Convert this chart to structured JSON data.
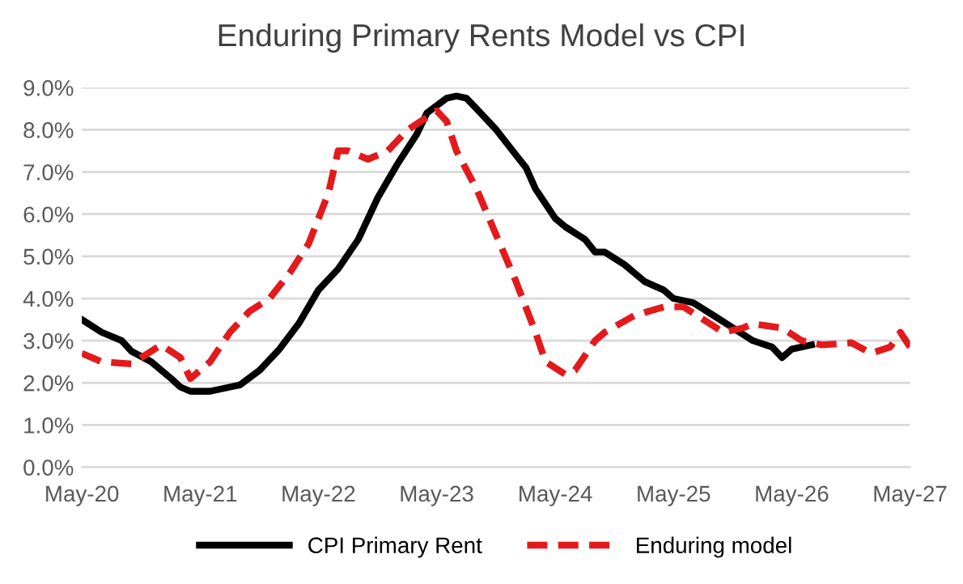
{
  "chart_data": {
    "type": "line",
    "title": "Enduring Primary Rents Model vs CPI",
    "xlim": [
      "2020-05",
      "2027-05"
    ],
    "xticks": [
      {
        "value": "2020-05",
        "label": "May-20"
      },
      {
        "value": "2021-05",
        "label": "May-21"
      },
      {
        "value": "2022-05",
        "label": "May-22"
      },
      {
        "value": "2023-05",
        "label": "May-23"
      },
      {
        "value": "2024-05",
        "label": "May-24"
      },
      {
        "value": "2025-05",
        "label": "May-25"
      },
      {
        "value": "2026-05",
        "label": "May-26"
      },
      {
        "value": "2027-05",
        "label": "May-27"
      }
    ],
    "ylim": [
      0,
      9
    ],
    "yticks": [
      {
        "value": 0,
        "label": "0.0%"
      },
      {
        "value": 1,
        "label": "1.0%"
      },
      {
        "value": 2,
        "label": "2.0%"
      },
      {
        "value": 3,
        "label": "3.0%"
      },
      {
        "value": 4,
        "label": "4.0%"
      },
      {
        "value": 5,
        "label": "5.0%"
      },
      {
        "value": 6,
        "label": "6.0%"
      },
      {
        "value": 7,
        "label": "7.0%"
      },
      {
        "value": 8,
        "label": "8.0%"
      },
      {
        "value": 9,
        "label": "9.0%"
      }
    ],
    "grid": "y",
    "legend": "bottom",
    "series": [
      {
        "name": "CPI Primary Rent",
        "color": "#000000",
        "line_style": "solid",
        "x": [
          "2020-05",
          "2020-07",
          "2020-09",
          "2020-10",
          "2020-12",
          "2021-02",
          "2021-03",
          "2021-04",
          "2021-06",
          "2021-08",
          "2021-09",
          "2021-11",
          "2022-01",
          "2022-03",
          "2022-05",
          "2022-07",
          "2022-09",
          "2022-11",
          "2023-01",
          "2023-03",
          "2023-04",
          "2023-06",
          "2023-07",
          "2023-08",
          "2023-09",
          "2023-11",
          "2024-01",
          "2024-02",
          "2024-03",
          "2024-05",
          "2024-06",
          "2024-08",
          "2024-09",
          "2024-10",
          "2024-12",
          "2025-02",
          "2025-04",
          "2025-05",
          "2025-07",
          "2025-09",
          "2025-11",
          "2026-01",
          "2026-03",
          "2026-04",
          "2026-05",
          "2026-07"
        ],
        "values": [
          3.5,
          3.2,
          3.0,
          2.75,
          2.5,
          2.1,
          1.9,
          1.8,
          1.8,
          1.9,
          1.95,
          2.3,
          2.8,
          3.4,
          4.2,
          4.7,
          5.4,
          6.4,
          7.2,
          7.9,
          8.4,
          8.75,
          8.8,
          8.75,
          8.5,
          8.0,
          7.4,
          7.1,
          6.6,
          5.9,
          5.7,
          5.4,
          5.1,
          5.1,
          4.8,
          4.4,
          4.2,
          4.0,
          3.9,
          3.6,
          3.3,
          3.0,
          2.85,
          2.6,
          2.8,
          2.9
        ]
      },
      {
        "name": "Enduring model",
        "color": "#e31a1c",
        "line_style": "dashed",
        "x": [
          "2020-05",
          "2020-07",
          "2020-10",
          "2020-11",
          "2021-01",
          "2021-03",
          "2021-04",
          "2021-06",
          "2021-08",
          "2021-10",
          "2021-12",
          "2022-02",
          "2022-04",
          "2022-06",
          "2022-07",
          "2022-08",
          "2022-10",
          "2022-12",
          "2023-02",
          "2023-05",
          "2023-06",
          "2023-07",
          "2023-09",
          "2023-11",
          "2024-01",
          "2024-03",
          "2024-04",
          "2024-06",
          "2024-07",
          "2024-09",
          "2024-10",
          "2025-01",
          "2025-04",
          "2025-06",
          "2025-08",
          "2025-10",
          "2025-12",
          "2026-01",
          "2026-04",
          "2026-06",
          "2026-08",
          "2026-11",
          "2027-01",
          "2027-03",
          "2027-04",
          "2027-05"
        ],
        "values": [
          2.7,
          2.5,
          2.45,
          2.6,
          2.9,
          2.6,
          2.1,
          2.5,
          3.2,
          3.7,
          4.0,
          4.6,
          5.3,
          6.5,
          7.5,
          7.5,
          7.3,
          7.5,
          8.0,
          8.45,
          8.2,
          7.5,
          6.6,
          5.5,
          4.4,
          3.2,
          2.5,
          2.2,
          2.3,
          3.0,
          3.2,
          3.6,
          3.8,
          3.8,
          3.5,
          3.2,
          3.3,
          3.4,
          3.3,
          3.0,
          2.9,
          2.95,
          2.7,
          2.85,
          3.2,
          2.85
        ]
      }
    ]
  }
}
